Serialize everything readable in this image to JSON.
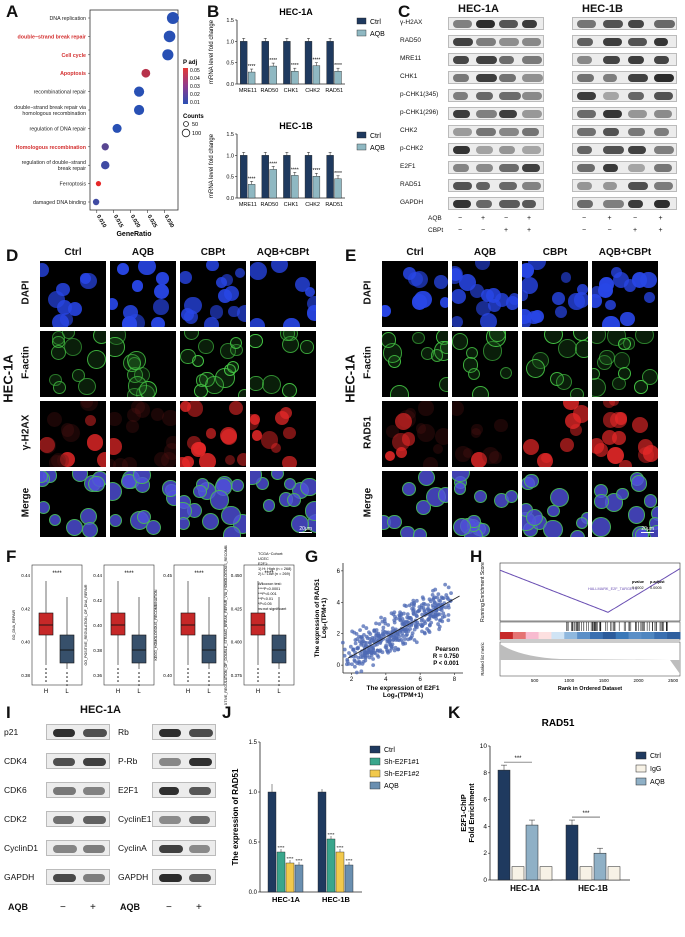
{
  "panels": {
    "A": {
      "label": "A",
      "terms": [
        "DNA replication",
        "double−strand break repair",
        "Cell cycle",
        "Apoptosis",
        "recombinational repair",
        "double−strand break repair via\nhomologous recombination",
        "regulation of DNA repair",
        "Homologous recombination",
        "regulation of double−strand\nbreak repair",
        "Ferroptosis",
        "damaged DNA binding"
      ],
      "highlighted": [
        false,
        true,
        true,
        true,
        false,
        false,
        false,
        true,
        false,
        false,
        false
      ],
      "gene_ratio": [
        0.0325,
        0.0315,
        0.031,
        0.0245,
        0.0225,
        0.0225,
        0.016,
        0.0125,
        0.0125,
        0.0105,
        0.0098
      ],
      "counts": [
        115,
        105,
        95,
        50,
        75,
        75,
        55,
        30,
        45,
        10,
        20
      ],
      "padj": [
        0.01,
        0.01,
        0.01,
        0.04,
        0.01,
        0.01,
        0.01,
        0.02,
        0.015,
        0.05,
        0.015
      ],
      "x_ticks": [
        "0.010",
        "0.015",
        "0.020",
        "0.025",
        "0.030"
      ],
      "xlabel": "GeneRatio",
      "legend_padj_title": "P adj",
      "legend_padj_ticks": [
        "0.05",
        "0.04",
        "0.03",
        "0.02",
        "0.01"
      ],
      "legend_counts_title": "Counts",
      "legend_counts": [
        "50",
        "100"
      ]
    },
    "B": {
      "label": "B",
      "chart_data": [
        {
          "type": "bar",
          "title": "HEC-1A",
          "ylabel": "mRNA level fold change",
          "categories": [
            "MRE11",
            "RAD50",
            "CHK1",
            "CHK2",
            "RAD51"
          ],
          "series": [
            {
              "name": "Ctrl",
              "values": [
                1.0,
                1.0,
                1.0,
                1.0,
                1.0
              ]
            },
            {
              "name": "AQB",
              "values": [
                0.28,
                0.42,
                0.3,
                0.43,
                0.3
              ]
            }
          ],
          "sig": [
            "****",
            "****",
            "****",
            "****",
            "****"
          ],
          "ylim": [
            0,
            1.5
          ],
          "yticks": [
            "0.0",
            "0.5",
            "1.0",
            "1.5"
          ]
        },
        {
          "type": "bar",
          "title": "HEC-1B",
          "ylabel": "mRNA level fold change",
          "categories": [
            "MRE11",
            "RAD50",
            "CHK1",
            "CHK2",
            "RAD51"
          ],
          "series": [
            {
              "name": "Ctrl",
              "values": [
                1.0,
                1.0,
                1.0,
                1.0,
                1.0
              ]
            },
            {
              "name": "AQB",
              "values": [
                0.32,
                0.67,
                0.53,
                0.51,
                0.45
              ]
            }
          ],
          "sig": [
            "****",
            "****",
            "****",
            "****",
            "****"
          ],
          "ylim": [
            0,
            1.5
          ],
          "yticks": [
            "0.0",
            "0.5",
            "1.0",
            "1.5"
          ]
        }
      ]
    },
    "C": {
      "label": "C",
      "cell_lines": [
        "HEC-1A",
        "HEC-1B"
      ],
      "proteins": [
        "γ-H2AX",
        "RAD50",
        "MRE11",
        "CHK1",
        "p-CHK1(345)",
        "p-CHK1(296)",
        "CHK2",
        "p-CHK2",
        "E2F1",
        "RAD51",
        "GAPDH"
      ],
      "treat_rows": [
        {
          "name": "AQB",
          "values": [
            "−",
            "+",
            "−",
            "+"
          ]
        },
        {
          "name": "CBPt",
          "values": [
            "−",
            "−",
            "+",
            "+"
          ]
        }
      ]
    },
    "D": {
      "label": "D",
      "cols": [
        "Ctrl",
        "AQB",
        "CBPt",
        "AQB+CBPt"
      ],
      "rows": [
        "DAPI",
        "F-actin",
        "γ-H2AX",
        "Merge"
      ],
      "cell_line": "HEC-1A",
      "scale": "20μm"
    },
    "E": {
      "label": "E",
      "cols": [
        "Ctrl",
        "AQB",
        "CBPt",
        "AQB+CBPt"
      ],
      "rows": [
        "DAPI",
        "F-actin",
        "RAD51",
        "Merge"
      ],
      "cell_line": "HEC-1A",
      "scale": "20μm"
    },
    "F": {
      "label": "F",
      "plots": [
        {
          "ylabel": "GO_DNA_REPAIR",
          "yticks": [
            "0.38",
            "0.40",
            "0.42",
            "0.44"
          ],
          "sig": "****"
        },
        {
          "ylabel": "GO_POSITIVE_REGULATION_OF_DNA_REPAIR",
          "yticks": [
            "0.36",
            "0.38",
            "0.40",
            "0.42",
            "0.44"
          ],
          "sig": "****"
        },
        {
          "ylabel": "KEGG_HOMOLOGOUS_RECOMBINATION",
          "yticks": [
            "0.40",
            "0.45"
          ],
          "sig": "****"
        },
        {
          "ylabel": "GO_POSITIVE_REGULATION_OF_DOUBLE_STRAND_BREAK_REPAIR_VIA_HOMOLOGOUS_RECOMBINATION",
          "yticks": [
            "0.375",
            "0.400",
            "0.425",
            "0.450"
          ],
          "sig": "****"
        }
      ],
      "groups": [
        "H",
        "L"
      ],
      "legend_lines": [
        "TCGA−Cohort:",
        "UCEC",
        "E2F1:",
        "1) H: High (n = 268)",
        "2) L: Low (n = 269)",
        "",
        "Wilcoxon test:",
        "****P<0.0001",
        "***P<0.001",
        "**P<0.01",
        "*P<0.05",
        "ns:not significant"
      ]
    },
    "G": {
      "label": "G",
      "ylabel": "The expression of RAD51\nLog₂(TPM+1)",
      "xlabel": "The expression of E2F1\nLog₂(TPM+1)",
      "x_ticks": [
        "2",
        "4",
        "6",
        "8"
      ],
      "y_ticks": [
        "0",
        "2",
        "4",
        "6"
      ],
      "stats": [
        "Pearson",
        "R = 0.750",
        "P < 0.001"
      ]
    },
    "H": {
      "label": "H",
      "ylabel_top": "Running Enrichment Score",
      "ylabel_bottom": "Ranked list metric",
      "xlabel": "Rank in Ordered Dataset",
      "gene_set": "HALLMARK_E2F_TARGETS",
      "table_headers": [
        "pvalue",
        "p.adjust"
      ],
      "table_values": [
        "0.0002",
        "0.0005"
      ],
      "x_ticks": [
        "500",
        "1000",
        "1500",
        "2000",
        "2500"
      ]
    },
    "I": {
      "label": "I",
      "title": "HEC-1A",
      "left_proteins": [
        "p21",
        "CDK4",
        "CDK6",
        "CDK2",
        "CyclinD1",
        "GAPDH"
      ],
      "right_proteins": [
        "Rb",
        "P-Rb",
        "E2F1",
        "CyclinE1",
        "CyclinA",
        "GAPDH"
      ],
      "treat_label": "AQB",
      "treat_values": [
        "−",
        "+"
      ]
    },
    "J": {
      "label": "J",
      "chart_data": {
        "type": "bar",
        "ylabel": "The expression of RAD51",
        "categories": [
          "HEC-1A",
          "HEC-1B"
        ],
        "series": [
          {
            "name": "Ctrl",
            "values": [
              1.0,
              1.0
            ],
            "color": "#1f3a5f"
          },
          {
            "name": "Sh-E2F1#1",
            "values": [
              0.4,
              0.53
            ],
            "color": "#3aa68c"
          },
          {
            "name": "Sh-E2F1#2",
            "values": [
              0.29,
              0.4
            ],
            "color": "#f2c94c"
          },
          {
            "name": "AQB",
            "values": [
              0.27,
              0.27
            ],
            "color": "#6a8fb0"
          }
        ],
        "sig": "****",
        "ylim": [
          0,
          1.5
        ],
        "yticks": [
          "0.0",
          "0.5",
          "1.0",
          "1.5"
        ]
      }
    },
    "K": {
      "label": "K",
      "chart_data": {
        "type": "bar",
        "title": "RAD51",
        "ylabel": "E2F1-ChIP\nFold Enrichment",
        "categories": [
          "HEC-1A",
          "HEC-1B"
        ],
        "groups": [
          "Ctrl",
          "IgG",
          "AQB",
          "IgG"
        ],
        "series": [
          {
            "name": "Ctrl",
            "color": "#1f3a5f"
          },
          {
            "name": "IgG",
            "color": "#f7f2e6"
          },
          {
            "name": "AQB",
            "color": "#8fb0c6"
          }
        ],
        "values": [
          [
            8.2,
            1.0,
            4.1,
            1.0
          ],
          [
            4.1,
            1.0,
            2.0,
            1.0
          ]
        ],
        "sig": "***",
        "ylim": [
          0,
          10
        ],
        "yticks": [
          "0",
          "2",
          "4",
          "6",
          "8",
          "10"
        ]
      }
    }
  }
}
